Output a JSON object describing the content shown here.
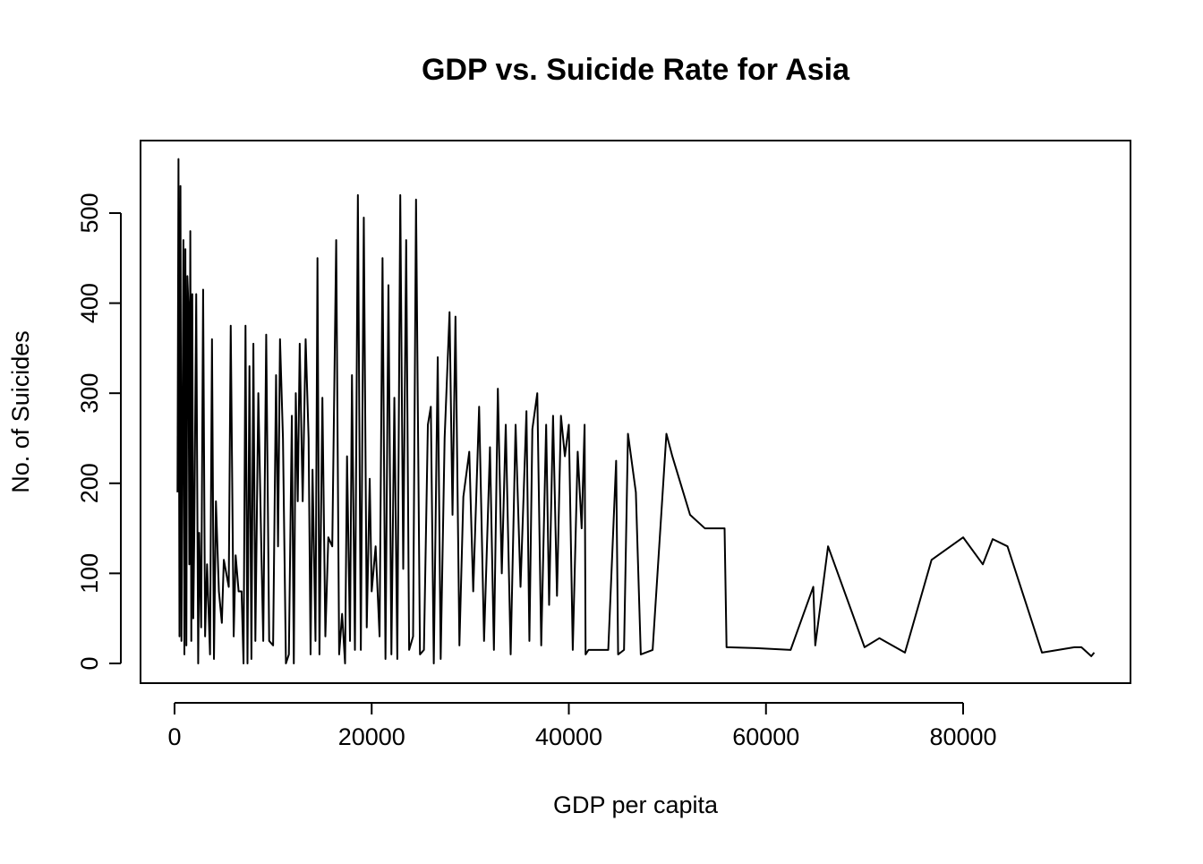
{
  "chart_data": {
    "type": "line",
    "title": "GDP vs. Suicide Rate for Asia",
    "x_label": "GDP per capita",
    "y_label": "No. of Suicides",
    "color": "#000000",
    "x": [
      300,
      400,
      500,
      600,
      700,
      800,
      900,
      1000,
      1100,
      1200,
      1300,
      1400,
      1500,
      1600,
      1700,
      1800,
      1900,
      2000,
      2200,
      2400,
      2500,
      2700,
      2900,
      3100,
      3300,
      3600,
      3800,
      4000,
      4200,
      4500,
      4800,
      5000,
      5500,
      5700,
      6000,
      6200,
      6500,
      6800,
      7000,
      7200,
      7400,
      7600,
      7800,
      8000,
      8200,
      8500,
      8800,
      9000,
      9300,
      9600,
      10000,
      10300,
      10500,
      10700,
      11000,
      11300,
      11600,
      11900,
      12100,
      12300,
      12500,
      12700,
      13000,
      13300,
      13600,
      13800,
      14000,
      14300,
      14500,
      14700,
      15000,
      15300,
      15600,
      16000,
      16400,
      16700,
      17000,
      17300,
      17500,
      17800,
      18000,
      18300,
      18600,
      18900,
      19200,
      19500,
      19800,
      20000,
      20400,
      20800,
      21100,
      21400,
      21700,
      22000,
      22300,
      22600,
      22900,
      23200,
      23500,
      23800,
      24200,
      24500,
      24900,
      25300,
      25700,
      26000,
      26300,
      26700,
      27000,
      27400,
      27900,
      28200,
      28500,
      28900,
      29300,
      29900,
      30300,
      30900,
      31400,
      32000,
      32400,
      32800,
      33200,
      33600,
      34100,
      34600,
      35100,
      35700,
      36000,
      36300,
      36800,
      37200,
      37700,
      38000,
      38400,
      38800,
      39200,
      39600,
      40000,
      40400,
      40900,
      41300,
      41600,
      41700,
      42000,
      43000,
      44000,
      44800,
      45000,
      45600,
      46000,
      46800,
      47300,
      48500,
      49900,
      50500,
      52300,
      53800,
      55800,
      56000,
      59000,
      62500,
      64800,
      65000,
      66300,
      70000,
      71500,
      74100,
      76800,
      80000,
      82000,
      83000,
      84500,
      88000,
      91300,
      92000,
      93000,
      93300
    ],
    "values": [
      190,
      560,
      30,
      530,
      25,
      250,
      470,
      10,
      460,
      20,
      430,
      400,
      110,
      480,
      25,
      410,
      50,
      140,
      410,
      0,
      145,
      40,
      415,
      30,
      110,
      10,
      360,
      5,
      180,
      80,
      45,
      115,
      85,
      375,
      30,
      120,
      80,
      80,
      0,
      375,
      0,
      330,
      5,
      355,
      25,
      300,
      130,
      25,
      365,
      25,
      20,
      320,
      130,
      360,
      250,
      0,
      10,
      275,
      0,
      300,
      180,
      355,
      180,
      360,
      250,
      10,
      215,
      25,
      450,
      10,
      295,
      30,
      140,
      130,
      470,
      10,
      55,
      0,
      230,
      25,
      320,
      15,
      520,
      15,
      495,
      40,
      205,
      80,
      130,
      30,
      450,
      5,
      420,
      10,
      295,
      5,
      520,
      105,
      470,
      15,
      30,
      515,
      10,
      15,
      265,
      285,
      0,
      340,
      5,
      250,
      390,
      165,
      385,
      20,
      185,
      235,
      80,
      285,
      25,
      240,
      15,
      305,
      100,
      265,
      10,
      265,
      85,
      280,
      25,
      260,
      300,
      20,
      265,
      65,
      275,
      75,
      275,
      230,
      265,
      15,
      235,
      150,
      265,
      10,
      15,
      15,
      15,
      225,
      10,
      15,
      255,
      190,
      10,
      15,
      255,
      230,
      165,
      150,
      150,
      18,
      17,
      15,
      85,
      20,
      130,
      18,
      28,
      12,
      115,
      140,
      110,
      138,
      130,
      12,
      18,
      18,
      8,
      12
    ],
    "xlim": [
      -3450,
      96980
    ],
    "ylim": [
      -21.9,
      580.5
    ],
    "xticks": [
      0,
      20000,
      40000,
      60000,
      80000
    ],
    "yticks": [
      0,
      100,
      200,
      300,
      400,
      500
    ]
  }
}
